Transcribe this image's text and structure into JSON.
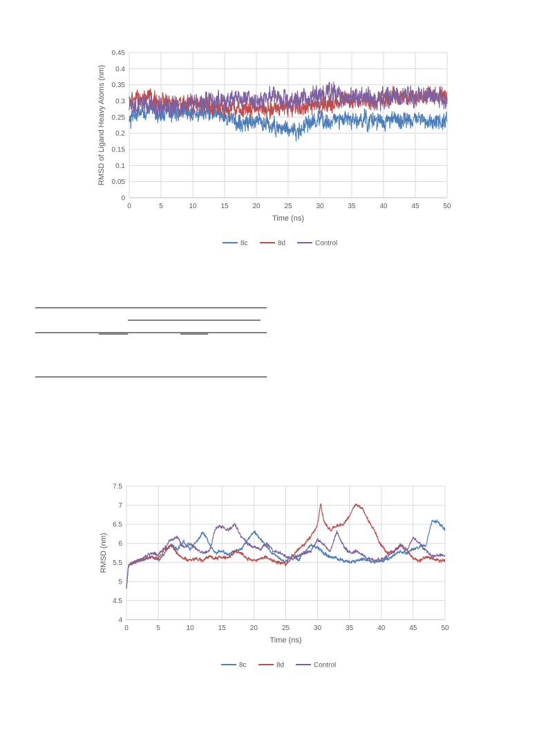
{
  "chart_data": [
    {
      "type": "line",
      "title": "",
      "xlabel": "Time (ns)",
      "ylabel": "RMSD of Ligand Heavy Atoms (nm)",
      "xlim": [
        0,
        50
      ],
      "ylim": [
        0,
        0.45
      ],
      "xticks": [
        "0",
        "5",
        "10",
        "15",
        "20",
        "25",
        "30",
        "35",
        "40",
        "45",
        "50"
      ],
      "yticks": [
        "0",
        "0.05",
        "0.1",
        "0.15",
        "0.2",
        "0.25",
        "0.3",
        "0.35",
        "0.4",
        "0.45"
      ],
      "grid": true,
      "legend": "bottom",
      "series": [
        {
          "name": "8c",
          "color": "#4a7ebb",
          "x": [
            0,
            1,
            3,
            5,
            8,
            10,
            12,
            15,
            17,
            20,
            22,
            25,
            26.5,
            28,
            30,
            33,
            35,
            38,
            40,
            42,
            45,
            47,
            48.5,
            50
          ],
          "y": [
            0.23,
            0.26,
            0.27,
            0.26,
            0.265,
            0.27,
            0.262,
            0.26,
            0.23,
            0.235,
            0.225,
            0.215,
            0.2,
            0.23,
            0.235,
            0.24,
            0.238,
            0.24,
            0.236,
            0.24,
            0.24,
            0.235,
            0.23,
            0.24
          ],
          "noise": 0.03
        },
        {
          "name": "8d",
          "color": "#be4b48",
          "x": [
            0,
            2,
            5,
            8,
            10,
            12,
            15,
            18,
            20,
            22,
            25,
            28,
            30,
            33,
            35,
            38,
            40,
            42,
            45,
            48,
            50
          ],
          "y": [
            0.3,
            0.31,
            0.3,
            0.29,
            0.29,
            0.285,
            0.28,
            0.278,
            0.275,
            0.278,
            0.28,
            0.28,
            0.285,
            0.3,
            0.305,
            0.3,
            0.305,
            0.31,
            0.31,
            0.32,
            0.31
          ],
          "noise": 0.03
        },
        {
          "name": "Control",
          "color": "#7d60a0",
          "x": [
            0,
            2,
            5,
            8,
            10,
            12,
            15,
            18,
            20,
            22,
            25,
            28,
            30,
            32,
            35,
            38,
            40,
            42,
            45,
            48,
            50
          ],
          "y": [
            0.27,
            0.29,
            0.285,
            0.28,
            0.29,
            0.295,
            0.3,
            0.305,
            0.3,
            0.31,
            0.3,
            0.31,
            0.32,
            0.325,
            0.315,
            0.31,
            0.305,
            0.31,
            0.315,
            0.32,
            0.3
          ],
          "noise": 0.035
        }
      ]
    },
    {
      "type": "line",
      "title": "",
      "xlabel": "Time (ns)",
      "ylabel": "RMSD (nm)",
      "xlim": [
        0,
        50
      ],
      "ylim": [
        4,
        7.5
      ],
      "xticks": [
        "0",
        "5",
        "10",
        "15",
        "20",
        "25",
        "30",
        "35",
        "40",
        "45",
        "50"
      ],
      "yticks": [
        "4",
        "4.5",
        "5",
        "5.5",
        "6",
        "6.5",
        "7",
        "7.5"
      ],
      "grid": true,
      "legend": "bottom",
      "series": [
        {
          "name": "8c",
          "color": "#4a7ebb",
          "x": [
            0,
            0.3,
            1,
            2,
            3,
            4,
            5,
            6,
            7,
            8,
            9,
            10,
            11,
            12,
            13,
            14,
            15,
            16,
            17,
            18,
            19,
            20,
            21,
            22,
            23,
            24,
            25,
            26,
            27,
            28,
            29,
            30,
            31,
            32,
            33,
            34,
            35,
            36,
            37,
            38,
            39,
            40,
            41,
            42,
            43,
            44,
            45,
            46,
            47,
            47.5,
            48,
            49,
            50
          ],
          "y": [
            4.85,
            5.4,
            5.5,
            5.55,
            5.6,
            5.65,
            5.55,
            5.75,
            5.95,
            5.85,
            6.05,
            5.85,
            6.05,
            6.3,
            6.0,
            5.75,
            5.8,
            5.7,
            5.8,
            5.85,
            6.1,
            6.3,
            6.15,
            5.9,
            5.75,
            5.6,
            5.5,
            5.7,
            5.55,
            5.8,
            5.95,
            5.9,
            5.75,
            5.65,
            5.6,
            5.55,
            5.5,
            5.55,
            5.6,
            5.55,
            5.5,
            5.55,
            5.6,
            5.7,
            5.8,
            5.75,
            5.85,
            5.9,
            5.95,
            6.3,
            6.6,
            6.55,
            6.35
          ],
          "noise": 0.05
        },
        {
          "name": "8d",
          "color": "#be4b48",
          "x": [
            0,
            0.3,
            1,
            2,
            3,
            4,
            5,
            6,
            7,
            8,
            9,
            10,
            11,
            12,
            13,
            14,
            15,
            16,
            17,
            18,
            19,
            20,
            21,
            22,
            23,
            24,
            25,
            26,
            27,
            28,
            29,
            30,
            30.5,
            31,
            32,
            33,
            34,
            35,
            36,
            37,
            38,
            39,
            40,
            41,
            42,
            43,
            44,
            45,
            46,
            47,
            48,
            49,
            50
          ],
          "y": [
            4.85,
            5.4,
            5.5,
            5.55,
            5.6,
            5.65,
            5.6,
            5.85,
            5.95,
            5.75,
            5.6,
            5.55,
            5.6,
            5.55,
            5.65,
            5.6,
            5.65,
            5.6,
            5.8,
            5.75,
            5.6,
            5.55,
            5.6,
            5.65,
            5.55,
            5.5,
            5.45,
            5.65,
            5.85,
            6.0,
            6.2,
            6.5,
            7.05,
            6.55,
            6.35,
            6.45,
            6.5,
            6.7,
            7.05,
            6.9,
            6.6,
            6.3,
            5.95,
            5.75,
            5.8,
            5.95,
            5.85,
            5.6,
            5.55,
            5.65,
            5.6,
            5.55,
            5.55
          ],
          "noise": 0.05
        },
        {
          "name": "Control",
          "color": "#7d60a0",
          "x": [
            0,
            0.3,
            1,
            2,
            3,
            4,
            5,
            6,
            7,
            8,
            9,
            10,
            11,
            12,
            13,
            14,
            15,
            16,
            17,
            18,
            19,
            20,
            21,
            22,
            23,
            24,
            25,
            26,
            27,
            28,
            29,
            30,
            31,
            32,
            33,
            34,
            35,
            36,
            37,
            38,
            39,
            40,
            41,
            42,
            43,
            44,
            45,
            46,
            47,
            48,
            49,
            50
          ],
          "y": [
            4.85,
            5.4,
            5.5,
            5.55,
            5.65,
            5.75,
            5.7,
            5.9,
            6.1,
            6.15,
            5.9,
            6.0,
            5.85,
            5.75,
            5.8,
            6.4,
            6.45,
            6.35,
            6.5,
            6.2,
            6.0,
            5.9,
            5.85,
            6.0,
            5.8,
            5.75,
            5.65,
            5.6,
            5.7,
            5.75,
            5.8,
            6.1,
            5.95,
            5.8,
            6.3,
            5.95,
            5.75,
            5.8,
            5.7,
            5.6,
            5.55,
            5.6,
            5.65,
            5.8,
            5.95,
            5.8,
            6.15,
            6.0,
            5.8,
            5.65,
            5.7,
            5.7
          ],
          "noise": 0.05
        }
      ]
    }
  ]
}
